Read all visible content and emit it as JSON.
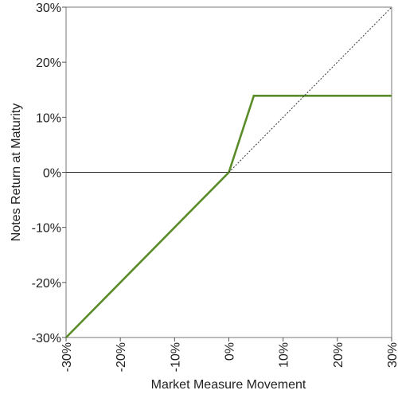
{
  "chart_data": {
    "type": "line",
    "title": "",
    "xlabel": "Market Measure Movement",
    "ylabel": "Notes Return at Maturity",
    "xlim": [
      -30,
      30
    ],
    "ylim": [
      -30,
      30
    ],
    "x_ticks": [
      -30,
      -20,
      -10,
      0,
      10,
      20,
      30
    ],
    "y_ticks": [
      -30,
      -20,
      -10,
      0,
      10,
      20,
      30
    ],
    "x_tick_labels": [
      "-30%",
      "-20%",
      "-10%",
      "0%",
      "10%",
      "20%",
      "30%"
    ],
    "y_tick_labels": [
      "-30%",
      "-20%",
      "-10%",
      "0%",
      "10%",
      "20%",
      "30%"
    ],
    "grid": false,
    "legend": "none",
    "series": [
      {
        "style": "solid",
        "color": "#5b8c2a",
        "x": [
          -30,
          0,
          4.6,
          30
        ],
        "y": [
          -30,
          0,
          13.9,
          13.9
        ]
      },
      {
        "style": "dotted",
        "color": "#333333",
        "x": [
          0,
          30
        ],
        "y": [
          0,
          30
        ]
      }
    ],
    "reference_lines": [
      {
        "axis": "y",
        "value": 0,
        "color": "#333333"
      }
    ]
  }
}
